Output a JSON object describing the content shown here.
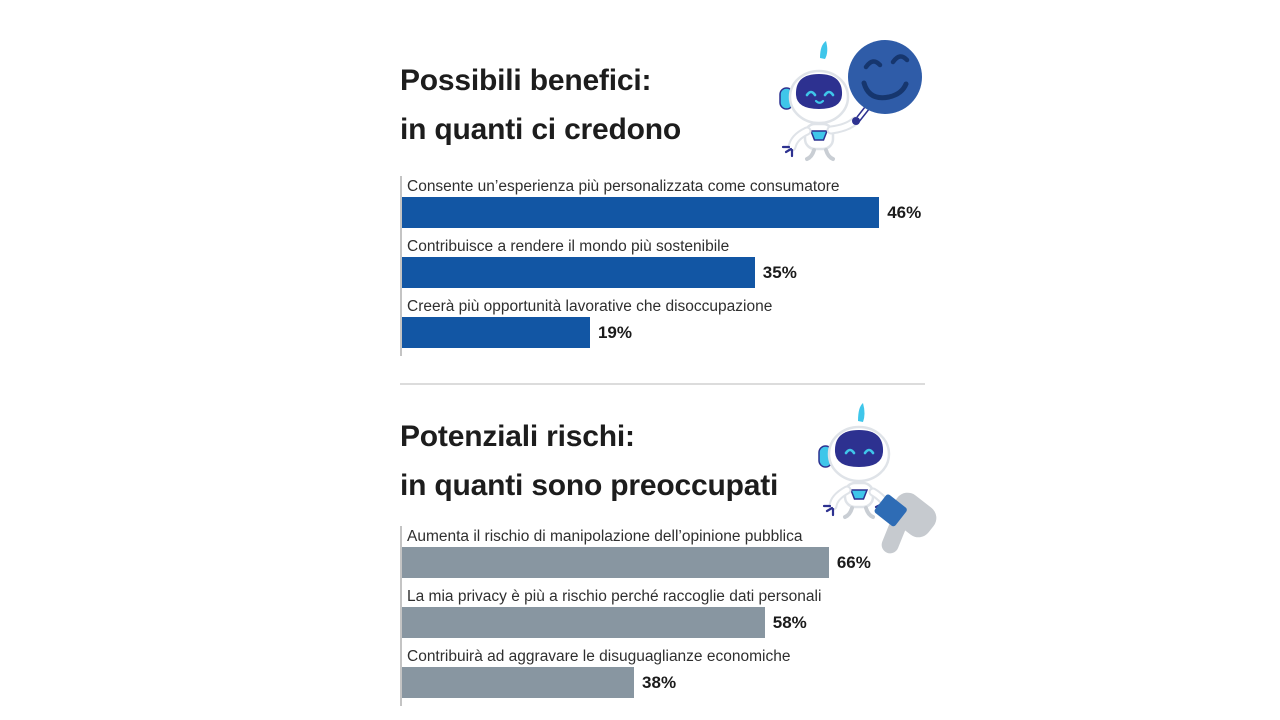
{
  "page": {
    "background": "#ffffff",
    "language": "it"
  },
  "colors": {
    "benefit_bar": "#1256a4",
    "risk_bar": "#8896a1",
    "title_text": "#1d1d1d",
    "label_text": "#2f2f2f",
    "axis_line": "#c4c4c4",
    "divider": "#dcdcdc",
    "robot_navy": "#2d3190",
    "robot_cyan": "#3fc6ea",
    "smiley_blue": "#2f5ca8",
    "smiley_features": "#16366e",
    "sleeve_blue": "#2e6cb5",
    "thumb_gray": "#c6cacf"
  },
  "sections": {
    "benefits": {
      "title_line1": "Possibili benefici:",
      "title_line2": "in quanti ci credono",
      "mascot": "robot-holding-smiley-sign",
      "rows": [
        {
          "label": "Consente un’esperienza più personalizzata come consumatore",
          "value": 46,
          "value_label": "46%",
          "width_pct": 90.9
        },
        {
          "label": "Contribuisce a rendere il mondo più sostenibile",
          "value": 35,
          "value_label": "35%",
          "width_pct": 67.2
        },
        {
          "label": "Creerà più opportunità lavorative che disoccupazione",
          "value": 19,
          "value_label": "19%",
          "width_pct": 35.8
        }
      ]
    },
    "risks": {
      "title_line1": "Potenziali rischi:",
      "title_line2": "in quanti sono preoccupati",
      "mascot": "robot-thumbs-down",
      "rows": [
        {
          "label": "Aumenta il rischio di manipolazione dell’opinione pubblica",
          "value": 66,
          "value_label": "66%",
          "width_pct": 81.3
        },
        {
          "label": "La mia privacy è più a rischio perché raccoglie dati personali",
          "value": 58,
          "value_label": "58%",
          "width_pct": 69.1
        },
        {
          "label": "Contribuirà ad aggravare le disuguaglianze economiche",
          "value": 38,
          "value_label": "38%",
          "width_pct": 44.2
        }
      ]
    }
  },
  "chart_data": [
    {
      "type": "bar",
      "orientation": "horizontal",
      "title": "Possibili benefici: in quanti ci credono",
      "categories": [
        "Consente un’esperienza più personalizzata come consumatore",
        "Contribuisce a rendere il mondo più sostenibile",
        "Creerà più opportunità lavorative che disoccupazione"
      ],
      "values": [
        46,
        35,
        19
      ],
      "value_labels": [
        "46%",
        "35%",
        "19%"
      ],
      "bar_color": "#1256a4",
      "xlabel": "",
      "ylabel": "",
      "xlim": [
        0,
        100
      ],
      "grid": false,
      "legend": false
    },
    {
      "type": "bar",
      "orientation": "horizontal",
      "title": "Potenziali rischi: in quanti sono preoccupati",
      "categories": [
        "Aumenta il rischio di manipolazione dell’opinione pubblica",
        "La mia privacy è più a rischio perché raccoglie dati personali",
        "Contribuirà ad aggravare le disuguaglianze economiche"
      ],
      "values": [
        66,
        58,
        38
      ],
      "value_labels": [
        "66%",
        "58%",
        "38%"
      ],
      "bar_color": "#8896a1",
      "xlabel": "",
      "ylabel": "",
      "xlim": [
        0,
        100
      ],
      "grid": false,
      "legend": false
    }
  ]
}
